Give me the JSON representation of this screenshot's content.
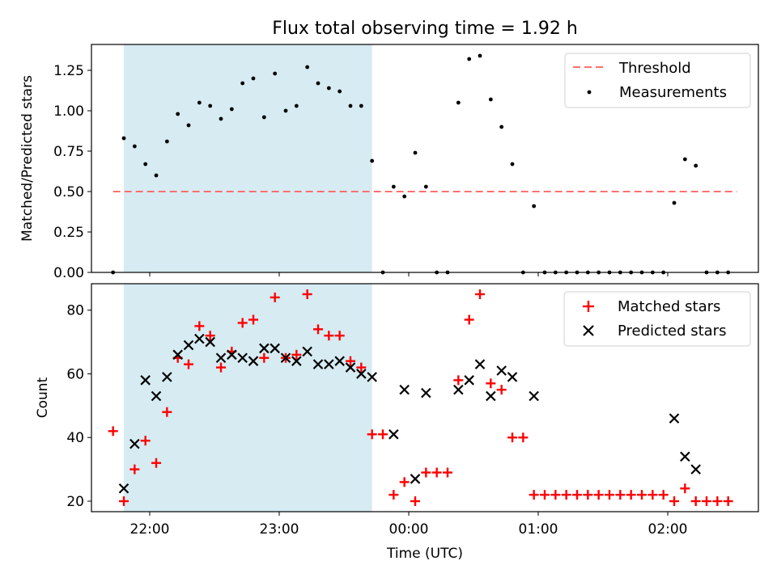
{
  "chart_data": {
    "title": "Flux total observing time = 1.92 h",
    "shaded_window": {
      "start": "21:48",
      "end": "23:43",
      "color": "#add8e6"
    },
    "x_axis": {
      "label": "Time (UTC)",
      "range": [
        "21:33",
        "02:42"
      ],
      "ticks": [
        "22:00",
        "23:00",
        "00:00",
        "01:00",
        "02:00"
      ]
    },
    "panels": [
      {
        "type": "scatter",
        "ylabel": "Matched/Predicted stars",
        "ylim": [
          0,
          1.41
        ],
        "yticks": [
          "0.00",
          "0.25",
          "0.50",
          "0.75",
          "1.00",
          "1.25"
        ],
        "legend": {
          "position": "top-right"
        },
        "threshold": {
          "name": "Threshold",
          "value": 0.5,
          "color": "#ff7070",
          "x_range": [
            "21:43",
            "02:32"
          ]
        },
        "series": [
          {
            "name": "Measurements",
            "marker": "dot",
            "color": "#000000",
            "points": [
              [
                "21:43",
                0.0
              ],
              [
                "21:48",
                0.83
              ],
              [
                "21:53",
                0.78
              ],
              [
                "21:58",
                0.67
              ],
              [
                "22:03",
                0.6
              ],
              [
                "22:08",
                0.81
              ],
              [
                "22:13",
                0.98
              ],
              [
                "22:18",
                0.91
              ],
              [
                "22:23",
                1.05
              ],
              [
                "22:28",
                1.03
              ],
              [
                "22:33",
                0.95
              ],
              [
                "22:38",
                1.01
              ],
              [
                "22:43",
                1.17
              ],
              [
                "22:48",
                1.2
              ],
              [
                "22:53",
                0.96
              ],
              [
                "22:58",
                1.23
              ],
              [
                "23:03",
                1.0
              ],
              [
                "23:08",
                1.03
              ],
              [
                "23:13",
                1.27
              ],
              [
                "23:18",
                1.17
              ],
              [
                "23:23",
                1.14
              ],
              [
                "23:28",
                1.12
              ],
              [
                "23:33",
                1.03
              ],
              [
                "23:38",
                1.03
              ],
              [
                "23:43",
                0.69
              ],
              [
                "23:48",
                0.0
              ],
              [
                "23:53",
                0.53
              ],
              [
                "23:58",
                0.47
              ],
              [
                "00:03",
                0.74
              ],
              [
                "00:08",
                0.53
              ],
              [
                "00:13",
                0.0
              ],
              [
                "00:18",
                0.0
              ],
              [
                "00:23",
                1.05
              ],
              [
                "00:28",
                1.32
              ],
              [
                "00:33",
                1.34
              ],
              [
                "00:38",
                1.07
              ],
              [
                "00:43",
                0.9
              ],
              [
                "00:48",
                0.67
              ],
              [
                "00:53",
                0.0
              ],
              [
                "00:58",
                0.41
              ],
              [
                "01:03",
                0.0
              ],
              [
                "01:08",
                0.0
              ],
              [
                "01:13",
                0.0
              ],
              [
                "01:18",
                0.0
              ],
              [
                "01:23",
                0.0
              ],
              [
                "01:28",
                0.0
              ],
              [
                "01:33",
                0.0
              ],
              [
                "01:38",
                0.0
              ],
              [
                "01:43",
                0.0
              ],
              [
                "01:48",
                0.0
              ],
              [
                "01:53",
                0.0
              ],
              [
                "01:58",
                0.0
              ],
              [
                "02:03",
                0.43
              ],
              [
                "02:08",
                0.7
              ],
              [
                "02:13",
                0.66
              ],
              [
                "02:18",
                0.0
              ],
              [
                "02:23",
                0.0
              ],
              [
                "02:28",
                0.0
              ]
            ]
          }
        ]
      },
      {
        "type": "scatter",
        "ylabel": "Count",
        "ylim": [
          16.7,
          88.3
        ],
        "yticks": [
          "20",
          "40",
          "60",
          "80"
        ],
        "legend": {
          "position": "top-right"
        },
        "series": [
          {
            "name": "Matched stars",
            "marker": "plus",
            "color": "#ff0000",
            "points": [
              [
                "21:43",
                42
              ],
              [
                "21:48",
                20
              ],
              [
                "21:53",
                30
              ],
              [
                "21:58",
                39
              ],
              [
                "22:03",
                32
              ],
              [
                "22:08",
                48
              ],
              [
                "22:13",
                65
              ],
              [
                "22:18",
                63
              ],
              [
                "22:23",
                75
              ],
              [
                "22:28",
                72
              ],
              [
                "22:33",
                62
              ],
              [
                "22:38",
                67
              ],
              [
                "22:43",
                76
              ],
              [
                "22:48",
                77
              ],
              [
                "22:53",
                65
              ],
              [
                "22:58",
                84
              ],
              [
                "23:03",
                65
              ],
              [
                "23:08",
                66
              ],
              [
                "23:13",
                85
              ],
              [
                "23:18",
                74
              ],
              [
                "23:23",
                72
              ],
              [
                "23:28",
                72
              ],
              [
                "23:33",
                64
              ],
              [
                "23:38",
                62
              ],
              [
                "23:43",
                41
              ],
              [
                "23:48",
                41
              ],
              [
                "23:53",
                22
              ],
              [
                "23:58",
                26
              ],
              [
                "00:03",
                20
              ],
              [
                "00:08",
                29
              ],
              [
                "00:13",
                29
              ],
              [
                "00:18",
                29
              ],
              [
                "00:23",
                58
              ],
              [
                "00:28",
                77
              ],
              [
                "00:33",
                85
              ],
              [
                "00:38",
                57
              ],
              [
                "00:43",
                55
              ],
              [
                "00:48",
                40
              ],
              [
                "00:53",
                40
              ],
              [
                "00:58",
                22
              ],
              [
                "01:03",
                22
              ],
              [
                "01:08",
                22
              ],
              [
                "01:13",
                22
              ],
              [
                "01:18",
                22
              ],
              [
                "01:23",
                22
              ],
              [
                "01:28",
                22
              ],
              [
                "01:33",
                22
              ],
              [
                "01:38",
                22
              ],
              [
                "01:43",
                22
              ],
              [
                "01:48",
                22
              ],
              [
                "01:53",
                22
              ],
              [
                "01:58",
                22
              ],
              [
                "02:03",
                20
              ],
              [
                "02:08",
                24
              ],
              [
                "02:13",
                20
              ],
              [
                "02:18",
                20
              ],
              [
                "02:23",
                20
              ],
              [
                "02:28",
                20
              ]
            ]
          },
          {
            "name": "Predicted stars",
            "marker": "x",
            "color": "#000000",
            "points": [
              [
                "21:48",
                24
              ],
              [
                "21:53",
                38
              ],
              [
                "21:58",
                58
              ],
              [
                "22:03",
                53
              ],
              [
                "22:08",
                59
              ],
              [
                "22:13",
                66
              ],
              [
                "22:18",
                69
              ],
              [
                "22:23",
                71
              ],
              [
                "22:28",
                70
              ],
              [
                "22:33",
                65
              ],
              [
                "22:38",
                66
              ],
              [
                "22:43",
                65
              ],
              [
                "22:48",
                64
              ],
              [
                "22:53",
                68
              ],
              [
                "22:58",
                68
              ],
              [
                "23:03",
                65
              ],
              [
                "23:08",
                64
              ],
              [
                "23:13",
                67
              ],
              [
                "23:18",
                63
              ],
              [
                "23:23",
                63
              ],
              [
                "23:28",
                64
              ],
              [
                "23:33",
                62
              ],
              [
                "23:38",
                60
              ],
              [
                "23:43",
                59
              ],
              [
                "23:53",
                41
              ],
              [
                "23:58",
                55
              ],
              [
                "00:03",
                27
              ],
              [
                "00:08",
                54
              ],
              [
                "00:23",
                55
              ],
              [
                "00:28",
                58
              ],
              [
                "00:33",
                63
              ],
              [
                "00:38",
                53
              ],
              [
                "00:43",
                61
              ],
              [
                "00:48",
                59
              ],
              [
                "00:58",
                53
              ],
              [
                "02:03",
                46
              ],
              [
                "02:08",
                34
              ],
              [
                "02:13",
                30
              ]
            ]
          }
        ]
      }
    ]
  }
}
